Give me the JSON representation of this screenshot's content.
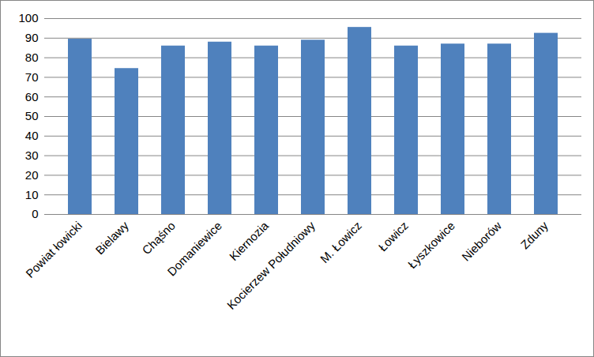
{
  "chart_data": {
    "type": "bar",
    "categories": [
      "Powiat łowicki",
      "Bielawy",
      "Chąśno",
      "Domaniewice",
      "Kiernozia",
      "Kocierzew Południowy",
      "M. Łowicz",
      "Łowicz",
      "Łyszkowice",
      "Nieborów",
      "Zduny"
    ],
    "values": [
      89.5,
      74.5,
      86,
      88,
      86,
      89,
      95.5,
      86,
      87,
      87,
      92.5
    ],
    "color": "#4f81bd",
    "ylim": [
      0,
      100
    ],
    "yticks": [
      0,
      10,
      20,
      30,
      40,
      50,
      60,
      70,
      80,
      90,
      100
    ],
    "grid": true
  }
}
